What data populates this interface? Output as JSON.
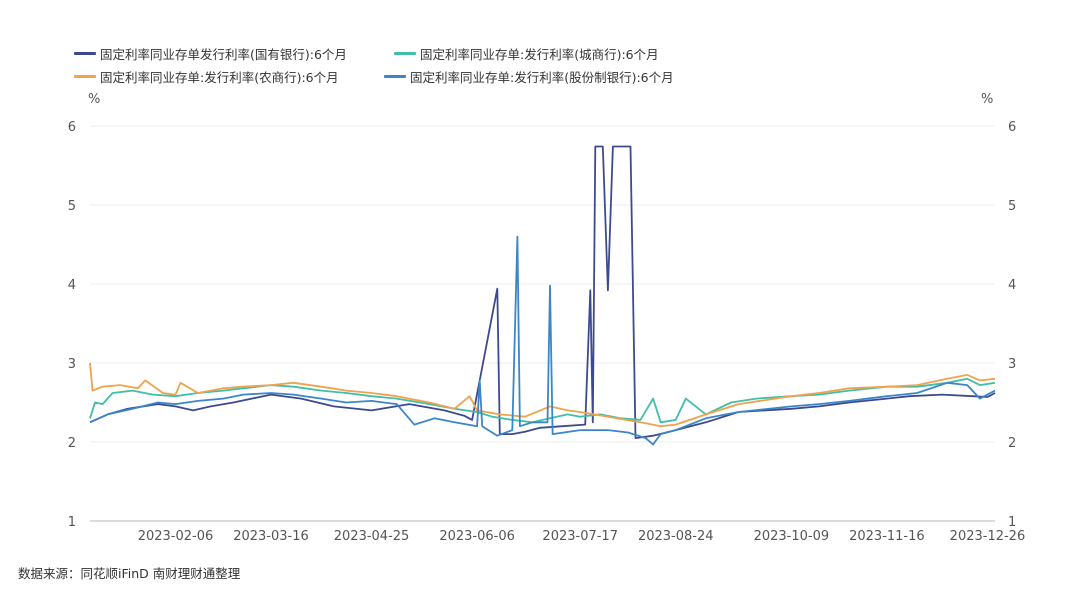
{
  "chart_data": {
    "type": "line",
    "y_unit_left": "%",
    "y_unit_right": "%",
    "ylim": [
      1,
      6
    ],
    "yticks": [
      "1",
      "2",
      "3",
      "4",
      "5",
      "6"
    ],
    "x_range": [
      "2023-01-03",
      "2023-12-29"
    ],
    "xticks": [
      "2023-02-06",
      "2023-03-16",
      "2023-04-25",
      "2023-06-06",
      "2023-07-17",
      "2023-08-24",
      "2023-10-09",
      "2023-11-16",
      "2023-12-26"
    ],
    "grid": "horizontal",
    "legend_position": "top-left",
    "series": [
      {
        "name": "固定利率同业存单发行利率(国有银行):6个月",
        "color": "#3d4a8f",
        "points": [
          [
            "2023-01-03",
            2.25
          ],
          [
            "2023-01-10",
            2.35
          ],
          [
            "2023-01-18",
            2.42
          ],
          [
            "2023-01-30",
            2.48
          ],
          [
            "2023-02-06",
            2.45
          ],
          [
            "2023-02-13",
            2.4
          ],
          [
            "2023-02-20",
            2.45
          ],
          [
            "2023-03-01",
            2.5
          ],
          [
            "2023-03-16",
            2.6
          ],
          [
            "2023-03-28",
            2.55
          ],
          [
            "2023-04-10",
            2.45
          ],
          [
            "2023-04-25",
            2.4
          ],
          [
            "2023-05-10",
            2.48
          ],
          [
            "2023-05-24",
            2.4
          ],
          [
            "2023-06-01",
            2.33
          ],
          [
            "2023-06-04",
            2.28
          ],
          [
            "2023-06-14",
            3.94
          ],
          [
            "2023-06-15",
            2.1
          ],
          [
            "2023-06-20",
            2.1
          ],
          [
            "2023-06-25",
            2.13
          ],
          [
            "2023-07-01",
            2.18
          ],
          [
            "2023-07-10",
            2.2
          ],
          [
            "2023-07-19",
            2.22
          ],
          [
            "2023-07-21",
            3.92
          ],
          [
            "2023-07-22",
            2.25
          ],
          [
            "2023-07-23",
            5.74
          ],
          [
            "2023-07-26",
            5.74
          ],
          [
            "2023-07-28",
            3.92
          ],
          [
            "2023-07-30",
            5.74
          ],
          [
            "2023-08-06",
            5.74
          ],
          [
            "2023-08-08",
            2.05
          ],
          [
            "2023-08-15",
            2.08
          ],
          [
            "2023-08-24",
            2.15
          ],
          [
            "2023-09-05",
            2.25
          ],
          [
            "2023-09-18",
            2.38
          ],
          [
            "2023-10-09",
            2.42
          ],
          [
            "2023-10-20",
            2.45
          ],
          [
            "2023-11-01",
            2.5
          ],
          [
            "2023-11-16",
            2.55
          ],
          [
            "2023-11-25",
            2.58
          ],
          [
            "2023-12-08",
            2.6
          ],
          [
            "2023-12-20",
            2.58
          ],
          [
            "2023-12-26",
            2.57
          ],
          [
            "2023-12-29",
            2.62
          ]
        ]
      },
      {
        "name": "固定利率同业存单:发行利率(城商行):6个月",
        "color": "#3fbfa8",
        "points": [
          [
            "2023-01-03",
            2.3
          ],
          [
            "2023-01-05",
            2.5
          ],
          [
            "2023-01-08",
            2.48
          ],
          [
            "2023-01-12",
            2.62
          ],
          [
            "2023-01-20",
            2.65
          ],
          [
            "2023-01-28",
            2.6
          ],
          [
            "2023-02-06",
            2.58
          ],
          [
            "2023-02-15",
            2.62
          ],
          [
            "2023-02-25",
            2.65
          ],
          [
            "2023-03-05",
            2.68
          ],
          [
            "2023-03-16",
            2.72
          ],
          [
            "2023-03-25",
            2.7
          ],
          [
            "2023-04-05",
            2.65
          ],
          [
            "2023-04-15",
            2.62
          ],
          [
            "2023-04-25",
            2.58
          ],
          [
            "2023-05-05",
            2.55
          ],
          [
            "2023-05-18",
            2.48
          ],
          [
            "2023-05-28",
            2.42
          ],
          [
            "2023-06-06",
            2.38
          ],
          [
            "2023-06-12",
            2.32
          ],
          [
            "2023-06-20",
            2.28
          ],
          [
            "2023-06-28",
            2.25
          ],
          [
            "2023-07-05",
            2.3
          ],
          [
            "2023-07-12",
            2.35
          ],
          [
            "2023-07-17",
            2.32
          ],
          [
            "2023-07-25",
            2.35
          ],
          [
            "2023-08-02",
            2.3
          ],
          [
            "2023-08-10",
            2.28
          ],
          [
            "2023-08-15",
            2.55
          ],
          [
            "2023-08-18",
            2.25
          ],
          [
            "2023-08-24",
            2.28
          ],
          [
            "2023-08-28",
            2.55
          ],
          [
            "2023-09-05",
            2.35
          ],
          [
            "2023-09-15",
            2.5
          ],
          [
            "2023-09-25",
            2.55
          ],
          [
            "2023-10-09",
            2.58
          ],
          [
            "2023-10-20",
            2.6
          ],
          [
            "2023-11-01",
            2.65
          ],
          [
            "2023-11-16",
            2.7
          ],
          [
            "2023-11-28",
            2.7
          ],
          [
            "2023-12-10",
            2.75
          ],
          [
            "2023-12-18",
            2.8
          ],
          [
            "2023-12-23",
            2.72
          ],
          [
            "2023-12-29",
            2.75
          ]
        ]
      },
      {
        "name": "固定利率同业存单:发行利率(农商行):6个月",
        "color": "#f0a24c",
        "points": [
          [
            "2023-01-03",
            3.0
          ],
          [
            "2023-01-04",
            2.65
          ],
          [
            "2023-01-08",
            2.7
          ],
          [
            "2023-01-15",
            2.72
          ],
          [
            "2023-01-22",
            2.68
          ],
          [
            "2023-01-25",
            2.78
          ],
          [
            "2023-02-01",
            2.62
          ],
          [
            "2023-02-06",
            2.6
          ],
          [
            "2023-02-08",
            2.75
          ],
          [
            "2023-02-15",
            2.62
          ],
          [
            "2023-02-25",
            2.68
          ],
          [
            "2023-03-05",
            2.7
          ],
          [
            "2023-03-16",
            2.72
          ],
          [
            "2023-03-25",
            2.75
          ],
          [
            "2023-04-05",
            2.7
          ],
          [
            "2023-04-15",
            2.65
          ],
          [
            "2023-04-25",
            2.62
          ],
          [
            "2023-05-05",
            2.58
          ],
          [
            "2023-05-18",
            2.5
          ],
          [
            "2023-05-28",
            2.42
          ],
          [
            "2023-06-03",
            2.58
          ],
          [
            "2023-06-06",
            2.4
          ],
          [
            "2023-06-15",
            2.35
          ],
          [
            "2023-06-25",
            2.32
          ],
          [
            "2023-07-05",
            2.45
          ],
          [
            "2023-07-12",
            2.4
          ],
          [
            "2023-07-17",
            2.38
          ],
          [
            "2023-07-28",
            2.32
          ],
          [
            "2023-08-10",
            2.25
          ],
          [
            "2023-08-18",
            2.2
          ],
          [
            "2023-08-24",
            2.22
          ],
          [
            "2023-09-05",
            2.35
          ],
          [
            "2023-09-18",
            2.48
          ],
          [
            "2023-10-09",
            2.58
          ],
          [
            "2023-10-20",
            2.62
          ],
          [
            "2023-11-01",
            2.68
          ],
          [
            "2023-11-16",
            2.7
          ],
          [
            "2023-11-28",
            2.72
          ],
          [
            "2023-12-10",
            2.8
          ],
          [
            "2023-12-18",
            2.85
          ],
          [
            "2023-12-23",
            2.78
          ],
          [
            "2023-12-29",
            2.8
          ]
        ]
      },
      {
        "name": "固定利率同业存单:发行利率(股份制银行):6个月",
        "color": "#3a86c8",
        "points": [
          [
            "2023-01-03",
            2.25
          ],
          [
            "2023-01-10",
            2.35
          ],
          [
            "2023-01-20",
            2.42
          ],
          [
            "2023-01-30",
            2.5
          ],
          [
            "2023-02-06",
            2.48
          ],
          [
            "2023-02-15",
            2.52
          ],
          [
            "2023-02-25",
            2.55
          ],
          [
            "2023-03-05",
            2.6
          ],
          [
            "2023-03-16",
            2.62
          ],
          [
            "2023-03-25",
            2.6
          ],
          [
            "2023-04-05",
            2.55
          ],
          [
            "2023-04-15",
            2.5
          ],
          [
            "2023-04-25",
            2.52
          ],
          [
            "2023-05-05",
            2.48
          ],
          [
            "2023-05-12",
            2.22
          ],
          [
            "2023-05-20",
            2.3
          ],
          [
            "2023-05-28",
            2.25
          ],
          [
            "2023-06-06",
            2.2
          ],
          [
            "2023-06-07",
            2.78
          ],
          [
            "2023-06-08",
            2.2
          ],
          [
            "2023-06-14",
            2.08
          ],
          [
            "2023-06-20",
            2.15
          ],
          [
            "2023-06-22",
            4.6
          ],
          [
            "2023-06-23",
            2.2
          ],
          [
            "2023-06-28",
            2.25
          ],
          [
            "2023-07-04",
            2.25
          ],
          [
            "2023-07-05",
            3.98
          ],
          [
            "2023-07-06",
            2.1
          ],
          [
            "2023-07-17",
            2.15
          ],
          [
            "2023-07-28",
            2.15
          ],
          [
            "2023-08-05",
            2.12
          ],
          [
            "2023-08-12",
            2.05
          ],
          [
            "2023-08-15",
            1.97
          ],
          [
            "2023-08-18",
            2.1
          ],
          [
            "2023-08-24",
            2.15
          ],
          [
            "2023-09-05",
            2.3
          ],
          [
            "2023-09-18",
            2.38
          ],
          [
            "2023-10-09",
            2.45
          ],
          [
            "2023-10-20",
            2.48
          ],
          [
            "2023-11-01",
            2.52
          ],
          [
            "2023-11-16",
            2.58
          ],
          [
            "2023-11-28",
            2.62
          ],
          [
            "2023-12-10",
            2.75
          ],
          [
            "2023-12-18",
            2.72
          ],
          [
            "2023-12-23",
            2.55
          ],
          [
            "2023-12-29",
            2.65
          ]
        ]
      }
    ]
  },
  "source_text": "数据来源：同花顺iFinD 南财理财通整理"
}
